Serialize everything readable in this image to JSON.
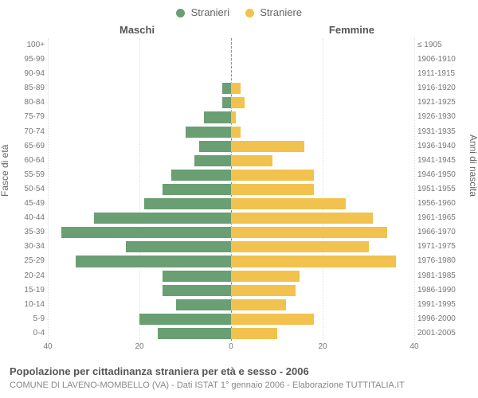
{
  "legend": {
    "male": {
      "label": "Stranieri",
      "color": "#6a9e73"
    },
    "female": {
      "label": "Straniere",
      "color": "#f2c24e"
    }
  },
  "headers": {
    "left": "Maschi",
    "right": "Femmine"
  },
  "axis_titles": {
    "left": "Fasce di età",
    "right": "Anni di nascita"
  },
  "chart": {
    "xlim": 40,
    "x_ticks_left": [
      40,
      20,
      0
    ],
    "x_ticks_right": [
      0,
      20,
      40
    ],
    "grid_color": "#e0e0e0",
    "bg": "#ffffff",
    "rows": [
      {
        "age": "100+",
        "birth": "≤ 1905",
        "m": 0,
        "f": 0
      },
      {
        "age": "95-99",
        "birth": "1906-1910",
        "m": 0,
        "f": 0
      },
      {
        "age": "90-94",
        "birth": "1911-1915",
        "m": 0,
        "f": 0
      },
      {
        "age": "85-89",
        "birth": "1916-1920",
        "m": 2,
        "f": 2
      },
      {
        "age": "80-84",
        "birth": "1921-1925",
        "m": 2,
        "f": 3
      },
      {
        "age": "75-79",
        "birth": "1926-1930",
        "m": 6,
        "f": 1
      },
      {
        "age": "70-74",
        "birth": "1931-1935",
        "m": 10,
        "f": 2
      },
      {
        "age": "65-69",
        "birth": "1936-1940",
        "m": 7,
        "f": 16
      },
      {
        "age": "60-64",
        "birth": "1941-1945",
        "m": 8,
        "f": 9
      },
      {
        "age": "55-59",
        "birth": "1946-1950",
        "m": 13,
        "f": 18
      },
      {
        "age": "50-54",
        "birth": "1951-1955",
        "m": 15,
        "f": 18
      },
      {
        "age": "45-49",
        "birth": "1956-1960",
        "m": 19,
        "f": 25
      },
      {
        "age": "40-44",
        "birth": "1961-1965",
        "m": 30,
        "f": 31
      },
      {
        "age": "35-39",
        "birth": "1966-1970",
        "m": 37,
        "f": 34
      },
      {
        "age": "30-34",
        "birth": "1971-1975",
        "m": 23,
        "f": 30
      },
      {
        "age": "25-29",
        "birth": "1976-1980",
        "m": 34,
        "f": 36
      },
      {
        "age": "20-24",
        "birth": "1981-1985",
        "m": 15,
        "f": 15
      },
      {
        "age": "15-19",
        "birth": "1986-1990",
        "m": 15,
        "f": 14
      },
      {
        "age": "10-14",
        "birth": "1991-1995",
        "m": 12,
        "f": 12
      },
      {
        "age": "5-9",
        "birth": "1996-2000",
        "m": 20,
        "f": 18
      },
      {
        "age": "0-4",
        "birth": "2001-2005",
        "m": 16,
        "f": 10
      }
    ]
  },
  "footer": {
    "title": "Popolazione per cittadinanza straniera per età e sesso - 2006",
    "sub": "COMUNE DI LAVENO-MOMBELLO (VA) - Dati ISTAT 1° gennaio 2006 - Elaborazione TUTTITALIA.IT"
  }
}
